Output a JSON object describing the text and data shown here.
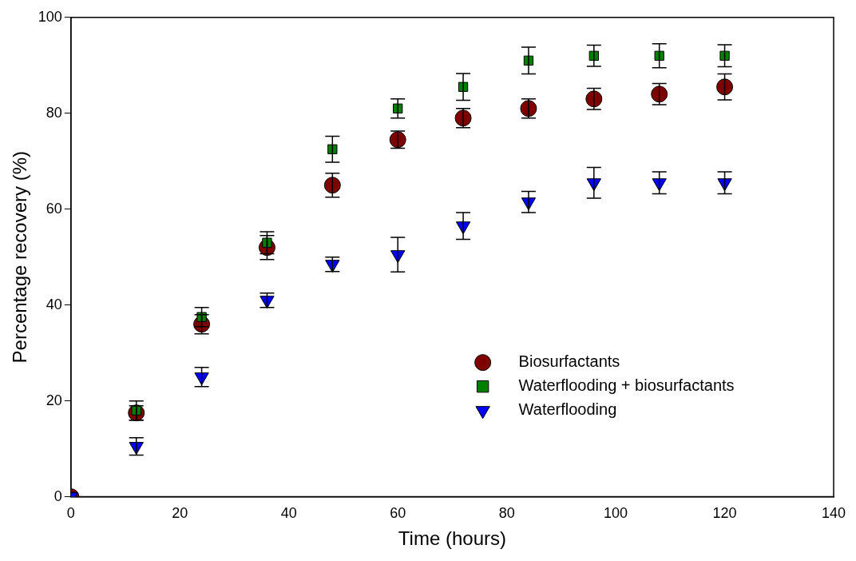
{
  "chart_data": {
    "type": "scatter",
    "xlabel": "Time (hours)",
    "ylabel": "Percentage recovery (%)",
    "x": [
      0,
      12,
      24,
      36,
      48,
      60,
      72,
      84,
      96,
      108,
      120
    ],
    "xlim": [
      0,
      140
    ],
    "xticks": [
      0,
      20,
      40,
      60,
      80,
      100,
      120,
      140
    ],
    "ylim": [
      0,
      100
    ],
    "yticks": [
      0,
      20,
      40,
      60,
      80,
      100
    ],
    "grid": false,
    "legend": "right",
    "series": [
      {
        "name": "Biosurfactants",
        "color": "#7f0000",
        "marker": "circle",
        "values": [
          0,
          17.5,
          36,
          52,
          65,
          74.5,
          79,
          81,
          83,
          84,
          85.5
        ],
        "errors": [
          null,
          1.5,
          2,
          2.5,
          2.5,
          1.8,
          2,
          2,
          2.2,
          2.2,
          2.7
        ]
      },
      {
        "name": "Waterflooding + biosurfactants",
        "color": "#008000",
        "marker": "square",
        "values": [
          0,
          18,
          37.5,
          53,
          72.5,
          81,
          85.5,
          91,
          92,
          92,
          92
        ],
        "errors": [
          null,
          2,
          2,
          2.3,
          2.7,
          2,
          2.8,
          2.8,
          2.2,
          2.5,
          2.3
        ]
      },
      {
        "name": "Waterflooding",
        "color": "#0000ff",
        "marker": "triangle",
        "values": [
          0,
          10.5,
          25,
          41,
          48.5,
          50.5,
          56.5,
          61.5,
          65.5,
          65.5,
          65.5
        ],
        "errors": [
          null,
          1.8,
          2,
          1.5,
          1.5,
          3.6,
          2.8,
          2.2,
          3.2,
          2.3,
          2.3
        ]
      }
    ]
  }
}
